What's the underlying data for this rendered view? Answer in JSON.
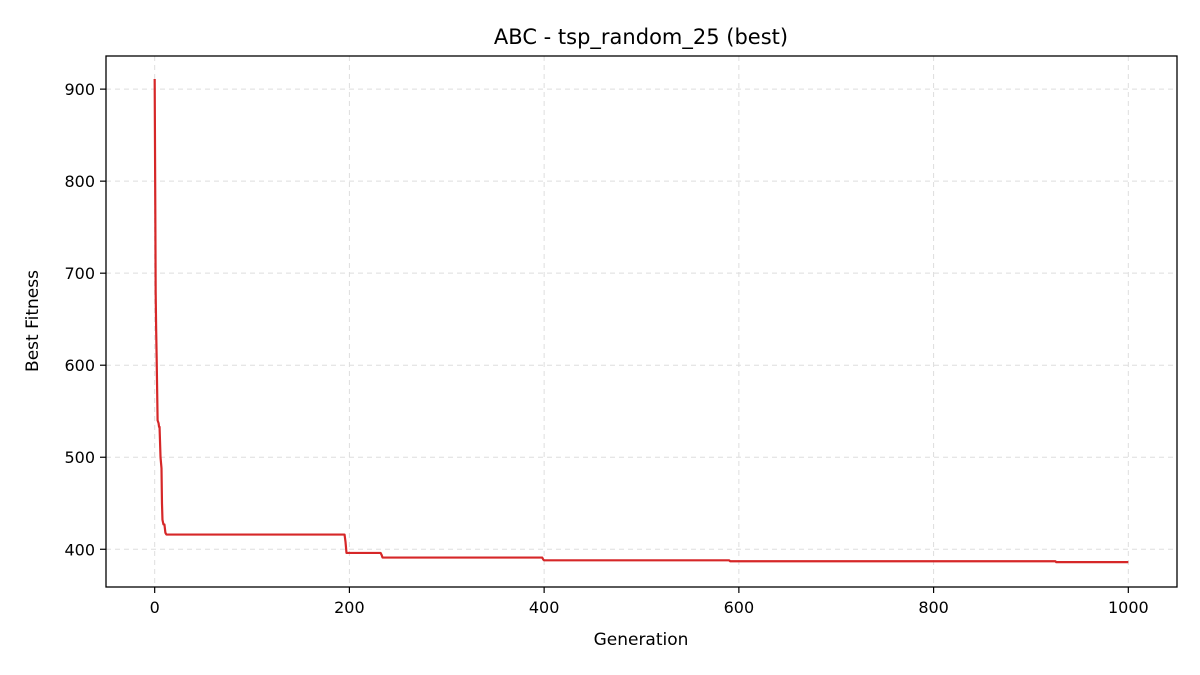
{
  "chart_data": {
    "type": "line",
    "title": "ABC - tsp_random_25 (best)",
    "xlabel": "Generation",
    "ylabel": "Best Fitness",
    "xlim": [
      -50,
      1050
    ],
    "ylim": [
      359,
      936
    ],
    "xticks": [
      0,
      200,
      400,
      600,
      800,
      1000
    ],
    "yticks": [
      400,
      500,
      600,
      700,
      800,
      900
    ],
    "grid": true,
    "series": [
      {
        "color": "#d62728",
        "x": [
          0,
          0.5,
          1,
          1.5,
          2,
          3,
          4,
          4.5,
          5,
          6,
          7,
          7.5,
          8,
          9,
          10,
          11,
          12,
          195,
          196,
          197,
          232,
          233,
          234,
          398,
          399,
          400,
          590,
          591,
          925,
          926,
          1000
        ],
        "y": [
          911,
          800,
          680,
          640,
          610,
          540,
          537,
          533,
          533,
          500,
          488,
          450,
          432,
          427,
          427,
          418,
          416,
          416,
          408,
          396,
          396,
          394,
          391,
          391,
          389,
          388,
          388,
          387,
          387,
          386,
          386
        ]
      }
    ]
  }
}
